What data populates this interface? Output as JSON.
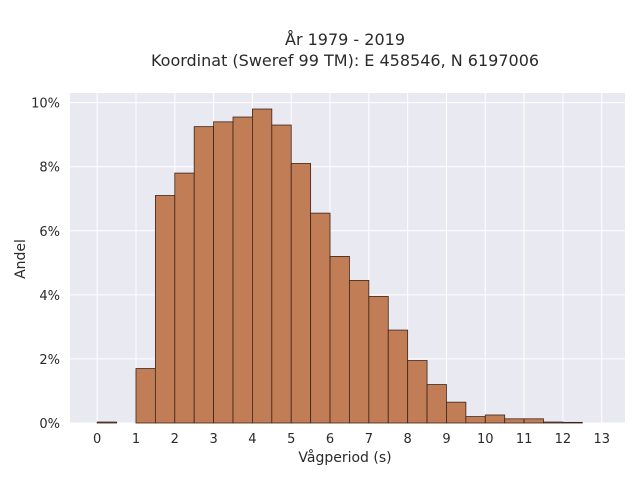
{
  "chart_data": {
    "type": "bar",
    "title_line1": "År 1979 - 2019",
    "title_line2": "Koordinat (Sweref 99 TM): E 458546, N 6197006",
    "xlabel": "Vågperiod (s)",
    "ylabel": "Andel",
    "bin_width": 0.5,
    "bin_starts": [
      0,
      0.5,
      1,
      1.5,
      2,
      2.5,
      3,
      3.5,
      4,
      4.5,
      5,
      5.5,
      6,
      6.5,
      7,
      7.5,
      8,
      8.5,
      9,
      9.5,
      10,
      10.5,
      11,
      11.5,
      12,
      12.5
    ],
    "values": [
      0.03,
      0,
      1.7,
      7.1,
      7.8,
      9.25,
      9.4,
      9.55,
      9.8,
      9.3,
      8.1,
      6.55,
      5.2,
      4.45,
      3.95,
      2.9,
      1.95,
      1.2,
      0.65,
      0.2,
      0.25,
      0.13,
      0.13,
      0.03,
      0.02,
      0
    ],
    "x_ticks": [
      0,
      1,
      2,
      3,
      4,
      5,
      6,
      7,
      8,
      9,
      10,
      11,
      12,
      13
    ],
    "x_tick_labels": [
      "0",
      "1",
      "2",
      "3",
      "4",
      "5",
      "6",
      "7",
      "8",
      "9",
      "10",
      "11",
      "12",
      "13"
    ],
    "xlim": [
      -0.7,
      13.6
    ],
    "y_ticks": [
      0,
      2,
      4,
      6,
      8,
      10
    ],
    "y_tick_labels": [
      "0%",
      "2%",
      "4%",
      "6%",
      "8%",
      "10%"
    ],
    "ylim": [
      0,
      10.3
    ],
    "grid": true,
    "colors": {
      "bar_fill": "#c07d56",
      "bar_stroke": "#3d2418",
      "plot_bg": "#e9e9f1",
      "grid": "#ffffff"
    }
  }
}
